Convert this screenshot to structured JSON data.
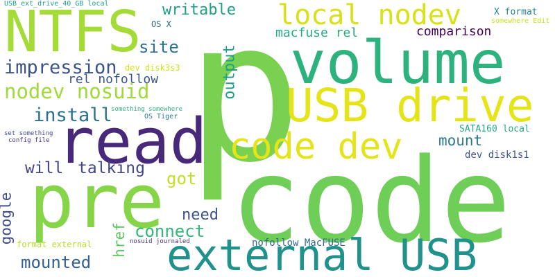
{
  "words": [
    {
      "text": "code",
      "color": "#6ece58"
    },
    {
      "text": "p",
      "color": "#7ad151"
    },
    {
      "text": "pre",
      "color": "#86d549"
    },
    {
      "text": "volume",
      "color": "#2db27d"
    },
    {
      "text": "read",
      "color": "#482878"
    },
    {
      "text": "external USB",
      "color": "#21918c"
    },
    {
      "text": "USB drive",
      "color": "#e5e419"
    },
    {
      "text": "code dev",
      "color": "#e5e419"
    },
    {
      "text": "NTFS",
      "color": "#a5db36"
    },
    {
      "text": "local nodev",
      "color": "#d8e219"
    },
    {
      "text": "nodev nosuid",
      "color": "#a0da39"
    },
    {
      "text": "impression",
      "color": "#3b528b"
    },
    {
      "text": "install",
      "color": "#2c728e"
    },
    {
      "text": "will",
      "color": "#404688"
    },
    {
      "text": "talking",
      "color": "#404688"
    },
    {
      "text": "writable",
      "color": "#1f9e89"
    },
    {
      "text": "site",
      "color": "#2c728e"
    },
    {
      "text": "output",
      "color": "#1f9e89"
    },
    {
      "text": "mounted",
      "color": "#35608d"
    },
    {
      "text": "google",
      "color": "#3e4989"
    },
    {
      "text": "href",
      "color": "#5ec962"
    },
    {
      "text": "connect",
      "color": "#35b779"
    },
    {
      "text": "need",
      "color": "#3b528b"
    },
    {
      "text": "got",
      "color": "#c2df23"
    },
    {
      "text": "comparison",
      "color": "#440154"
    },
    {
      "text": "mount",
      "color": "#2a788e"
    },
    {
      "text": "macfuse rel",
      "color": "#25ab82"
    },
    {
      "text": "rel nofollow",
      "color": "#39568c"
    },
    {
      "text": "SATA160 local",
      "color": "#23a983"
    },
    {
      "text": "dev disk1s1",
      "color": "#3b528b"
    },
    {
      "text": "X format",
      "color": "#26828e"
    },
    {
      "text": "somewhere Edit",
      "color": "#cae11f"
    },
    {
      "text": "OS X",
      "color": "#30698e"
    },
    {
      "text": "dev disk3s3",
      "color": "#d2e21b"
    },
    {
      "text": "USB_ext_drive_40_GB local",
      "color": "#1f9e89"
    },
    {
      "text": "something somewhere",
      "color": "#2db27d"
    },
    {
      "text": "OS Tiger",
      "color": "#287c8e"
    },
    {
      "text": "set something",
      "color": "#3e4989"
    },
    {
      "text": "config file",
      "color": "#46337e"
    },
    {
      "text": "format external",
      "color": "#b5de2b"
    },
    {
      "text": "nosuid journaled",
      "color": "#472d7b"
    },
    {
      "text": "nofollow MacFUSE",
      "color": "#31688e"
    }
  ]
}
